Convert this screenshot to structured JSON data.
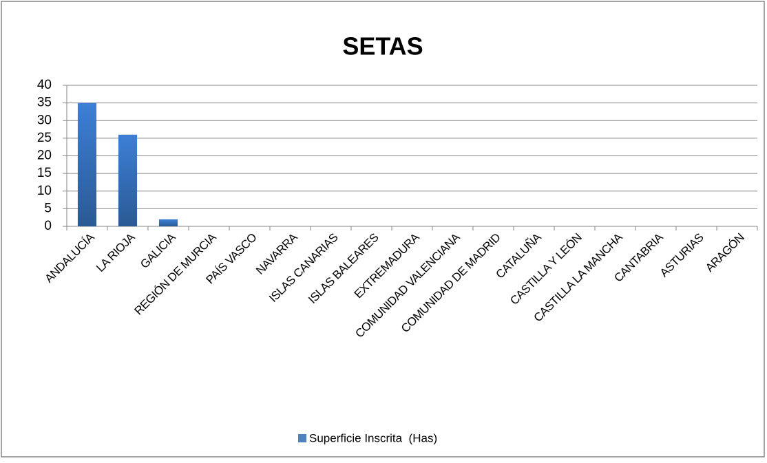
{
  "chart_data": {
    "type": "bar",
    "title": "SETAS",
    "categories": [
      "ANDALUCÍA",
      "LA RIOJA",
      "GALICIA",
      "REGIÓN DE MURCIA",
      "PAÍS VASCO",
      "NAVARRA",
      "ISLAS CANARIAS",
      "ISLAS BALEARES",
      "EXTREMADURA",
      "COMUNIDAD VALENCIANA",
      "COMUNIDAD DE MADRID",
      "CATALUÑA",
      "CASTILLA Y LEÓN",
      "CASTILLA LA MANCHA",
      "CANTABRIA",
      "ASTURIAS",
      "ARAGÓN"
    ],
    "series": [
      {
        "name": "Superficie Inscrita  (Has)",
        "color": "#4f81bd",
        "values": [
          35,
          26,
          2,
          0,
          0,
          0,
          0,
          0,
          0,
          0,
          0,
          0,
          0,
          0,
          0,
          0,
          0
        ]
      }
    ],
    "ylim": [
      0,
      40
    ],
    "yticks": [
      0,
      5,
      10,
      15,
      20,
      25,
      30,
      35,
      40
    ],
    "grid": true,
    "legend": "bottom"
  }
}
